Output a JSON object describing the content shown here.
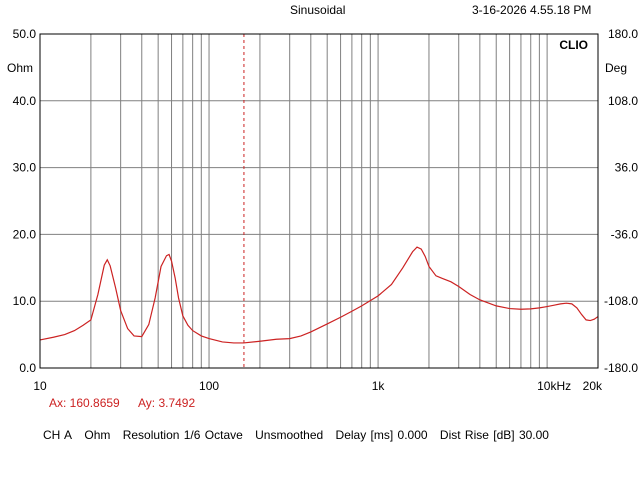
{
  "header": {
    "mode": "Sinusoidal",
    "timestamp": "3-16-2026 4.55.18 PM"
  },
  "cursor": {
    "ax_label": "Ax: 160.8659",
    "ay_label": "Ay: 3.7492",
    "x": 160.8659
  },
  "status_bar": {
    "channel": "CH A",
    "unit": "Ohm",
    "resolution": "Resolution 1/6 Octave",
    "smoothing": "Unsmoothed",
    "delay": "Delay [ms] 0.000",
    "dist_rise": "Dist Rise [dB] 30.00"
  },
  "colors": {
    "trace": "#cc2222",
    "grid": "#808080",
    "cursor": "#cc2222"
  },
  "chart_data": {
    "type": "line",
    "brand": "CLIO",
    "x_scale": "log",
    "xlim": [
      10,
      20000
    ],
    "x_tick_labels": [
      {
        "value": 10,
        "label": "10"
      },
      {
        "value": 100,
        "label": "100"
      },
      {
        "value": 1000,
        "label": "1k"
      },
      {
        "value": 10000,
        "label": "10kHz"
      },
      {
        "value": 20000,
        "label": "20k"
      }
    ],
    "ylim": [
      0,
      50
    ],
    "y_unit": "Ohm",
    "y_tick_labels": [
      "0.0",
      "10.0",
      "20.0",
      "30.0",
      "40.0",
      "50.0"
    ],
    "y_ticks": [
      0,
      10,
      20,
      30,
      40,
      50
    ],
    "y2lim": [
      -180,
      180
    ],
    "y2_unit": "Deg",
    "y2_tick_labels": [
      "-180.0",
      "-108.0",
      "-36.0",
      "36.0",
      "108.0",
      "180.0"
    ],
    "y2_ticks": [
      -180,
      -108,
      -36,
      36,
      108,
      180
    ],
    "grid": true,
    "series": [
      {
        "x": [
          10,
          12,
          14,
          16,
          18,
          20,
          22,
          24,
          25,
          26,
          28,
          30,
          33,
          36,
          40,
          44,
          48,
          52,
          56,
          58,
          60,
          63,
          66,
          70,
          75,
          80,
          90,
          100,
          120,
          140,
          160,
          200,
          250,
          300,
          350,
          400,
          500,
          600,
          700,
          800,
          1000,
          1200,
          1400,
          1600,
          1700,
          1800,
          1900,
          2000,
          2200,
          2400,
          2700,
          3000,
          3500,
          4000,
          5000,
          6000,
          7000,
          8000,
          9000,
          10000,
          11000,
          12000,
          13000,
          14000,
          15000,
          16000,
          17000,
          18000,
          19000,
          20000
        ],
        "y": [
          4.2,
          4.6,
          5.0,
          5.6,
          6.4,
          7.2,
          11.0,
          15.4,
          16.2,
          15.3,
          12.0,
          8.6,
          5.9,
          4.8,
          4.7,
          6.5,
          10.5,
          15.2,
          16.8,
          17.0,
          16.0,
          13.5,
          10.5,
          7.8,
          6.4,
          5.6,
          4.8,
          4.4,
          3.9,
          3.75,
          3.75,
          4.0,
          4.3,
          4.4,
          4.8,
          5.4,
          6.6,
          7.6,
          8.5,
          9.3,
          10.8,
          12.5,
          15.0,
          17.4,
          18.1,
          17.8,
          16.7,
          15.2,
          13.8,
          13.4,
          12.9,
          12.2,
          11.0,
          10.2,
          9.3,
          8.9,
          8.8,
          8.85,
          9.0,
          9.2,
          9.4,
          9.6,
          9.7,
          9.6,
          9.0,
          8.0,
          7.2,
          7.1,
          7.3,
          7.7
        ]
      }
    ]
  }
}
